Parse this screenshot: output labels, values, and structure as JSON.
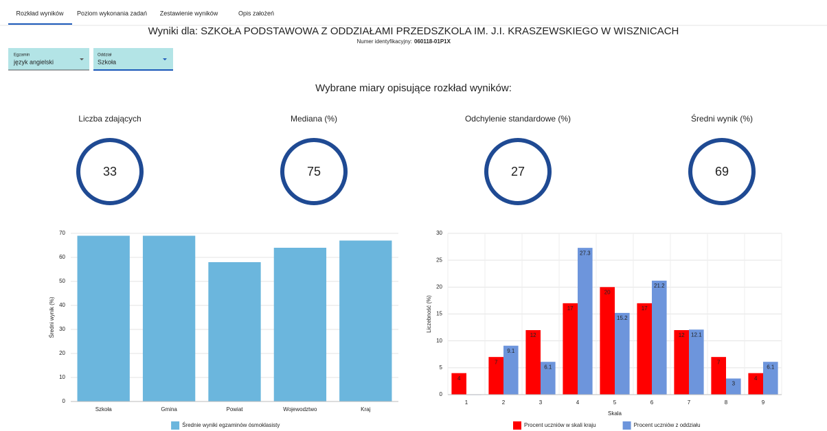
{
  "tabs": [
    "Rozkład wyników",
    "Poziom wykonania zadań",
    "Zestawienie wyników",
    "Opis założeń"
  ],
  "header": {
    "title": "Wyniki dla: SZKOŁA PODSTAWOWA Z ODDZIAŁAMI PRZEDSZKOLA IM. J.I. KRASZEWSKIEGO W WISZNICACH",
    "id_label": "Numer identyfikacyjny:",
    "id_value": "060118-01P1X"
  },
  "filters": [
    {
      "label": "Egzamin",
      "value": "język angielski"
    },
    {
      "label": "Oddział",
      "value": "Szkoła"
    }
  ],
  "section_title": "Wybrane miary opisujące rozkład wyników:",
  "measures": [
    {
      "label": "Liczba zdających",
      "value": 33
    },
    {
      "label": "Mediana (%)",
      "value": 75
    },
    {
      "label": "Odchylenie standardowe (%)",
      "value": 27
    },
    {
      "label": "Średni wynik (%)",
      "value": 69
    }
  ],
  "chart_data": [
    {
      "type": "bar",
      "ylabel": "Średni wynik (%)",
      "categories": [
        "Szkoła",
        "Gmina",
        "Powiat",
        "Wojewodztwo",
        "Kraj"
      ],
      "series": [
        {
          "name": "Średnie wyniki egzaminów ósmoklasisty",
          "color": "#6bb6dd",
          "values": [
            69,
            69,
            58,
            64,
            67
          ]
        }
      ],
      "ylim": [
        0,
        70
      ],
      "yticks": [
        0,
        10,
        20,
        30,
        40,
        50,
        60,
        70
      ],
      "grid": true
    },
    {
      "type": "bar",
      "ylabel": "Liczebność (%)",
      "xlabel": "Skala",
      "categories": [
        "1",
        "2",
        "3",
        "4",
        "5",
        "6",
        "7",
        "8",
        "9"
      ],
      "series": [
        {
          "name": "Procent uczniów w skali kraju",
          "color": "#ff0000",
          "values": [
            4,
            7,
            12,
            17,
            20,
            17,
            12,
            7,
            4
          ]
        },
        {
          "name": "Procent uczniów z oddziału",
          "color": "#6d95dc",
          "values": [
            0,
            9.1,
            6.1,
            27.3,
            15.2,
            21.2,
            12.1,
            3,
            6.1
          ]
        }
      ],
      "ylim": [
        0,
        30
      ],
      "yticks": [
        0,
        5,
        10,
        15,
        20,
        25,
        30
      ],
      "grid": true,
      "data_labels": true
    }
  ]
}
